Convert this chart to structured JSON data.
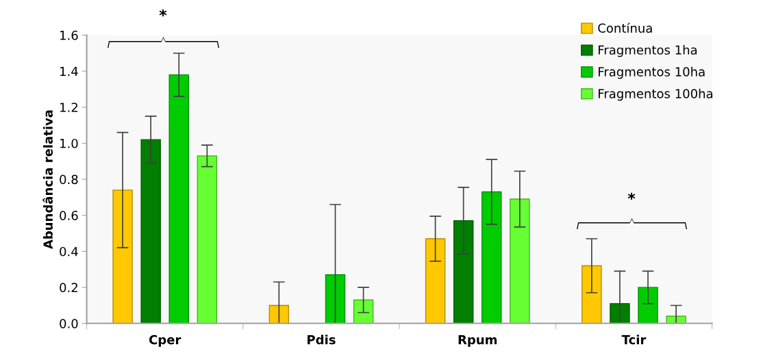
{
  "chart_data": {
    "type": "bar",
    "ylabel": "Abundância relativa",
    "categories": [
      "Cper",
      "Pdis",
      "Rpum",
      "Tcir"
    ],
    "series": [
      {
        "name": "Contínua",
        "color": "#ffc800",
        "values": [
          0.74,
          0.1,
          0.47,
          0.32
        ],
        "errors": [
          0.32,
          [
            0.0,
            0.23
          ],
          0.125,
          0.15
        ]
      },
      {
        "name": "Fragmentos 1ha",
        "color": "#007f00",
        "values": [
          1.02,
          0.0,
          0.57,
          0.11
        ],
        "errors": [
          0.13,
          null,
          0.185,
          [
            0.0,
            0.29
          ]
        ]
      },
      {
        "name": "Fragmentos 10ha",
        "color": "#00cc00",
        "values": [
          1.38,
          0.27,
          0.73,
          0.2
        ],
        "errors": [
          0.12,
          [
            0.0,
            0.66
          ],
          0.18,
          0.09
        ]
      },
      {
        "name": "Fragmentos 100ha",
        "color": "#66ff33",
        "values": [
          0.93,
          0.13,
          0.69,
          0.04
        ],
        "errors": [
          0.06,
          0.07,
          0.155,
          [
            0.0,
            0.1
          ]
        ]
      }
    ],
    "ylim": [
      0,
      1.6
    ],
    "yticks": [
      {
        "value": 0,
        "label": "0.0"
      },
      {
        "value": 0.2,
        "label": "0.2"
      },
      {
        "value": 0.4,
        "label": "0.4"
      },
      {
        "value": 0.6,
        "label": "0.6"
      },
      {
        "value": 0.8,
        "label": "0.8"
      },
      {
        "value": 1.0,
        "label": "1.0"
      },
      {
        "value": 1.2,
        "label": "1.2"
      },
      {
        "value": 1.4,
        "label": "1.4"
      },
      {
        "value": 1.6,
        "label": "1.6"
      }
    ],
    "annotations": [
      "*",
      "*"
    ],
    "grid": false,
    "legend": "top right"
  }
}
